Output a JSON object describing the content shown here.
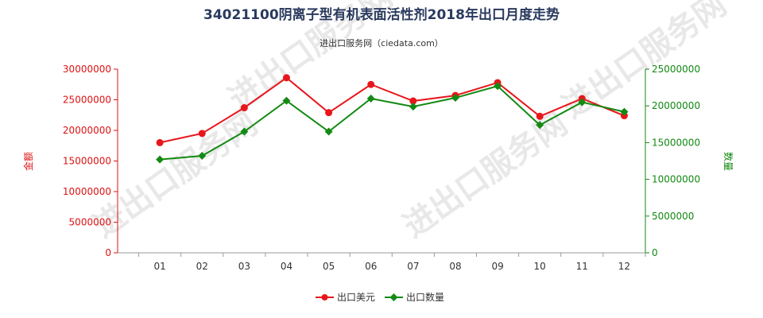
{
  "chart_data": {
    "type": "line",
    "title": "34021100阴离子型有机表面活性剂2018年出口月度走势",
    "subtitle": "进出口服务网（ciedata.com）",
    "watermark": "进出口服务网",
    "categories": [
      "01",
      "02",
      "03",
      "04",
      "05",
      "06",
      "07",
      "08",
      "09",
      "10",
      "11",
      "12"
    ],
    "y_left": {
      "label": "金额",
      "min": 0,
      "max": 30000000,
      "ticks": [
        0,
        5000000,
        10000000,
        15000000,
        20000000,
        25000000,
        30000000
      ],
      "color": "#dd1111"
    },
    "y_right": {
      "label": "数量",
      "min": 0,
      "max": 25000000,
      "ticks": [
        0,
        5000000,
        10000000,
        15000000,
        20000000,
        25000000
      ],
      "color": "#118811"
    },
    "series": [
      {
        "name": "出口美元",
        "axis": "left",
        "color": "#e8161b",
        "marker": "circle",
        "values": [
          18000000,
          19500000,
          23700000,
          28600000,
          22900000,
          27500000,
          24800000,
          25700000,
          27800000,
          22300000,
          25200000,
          22400000
        ]
      },
      {
        "name": "出口数量",
        "axis": "right",
        "color": "#138a13",
        "marker": "diamond",
        "values": [
          12700000,
          13200000,
          16500000,
          20700000,
          16500000,
          21000000,
          19900000,
          21100000,
          22700000,
          17400000,
          20500000,
          19200000
        ]
      }
    ],
    "grid": false,
    "legend_position": "bottom-center"
  }
}
